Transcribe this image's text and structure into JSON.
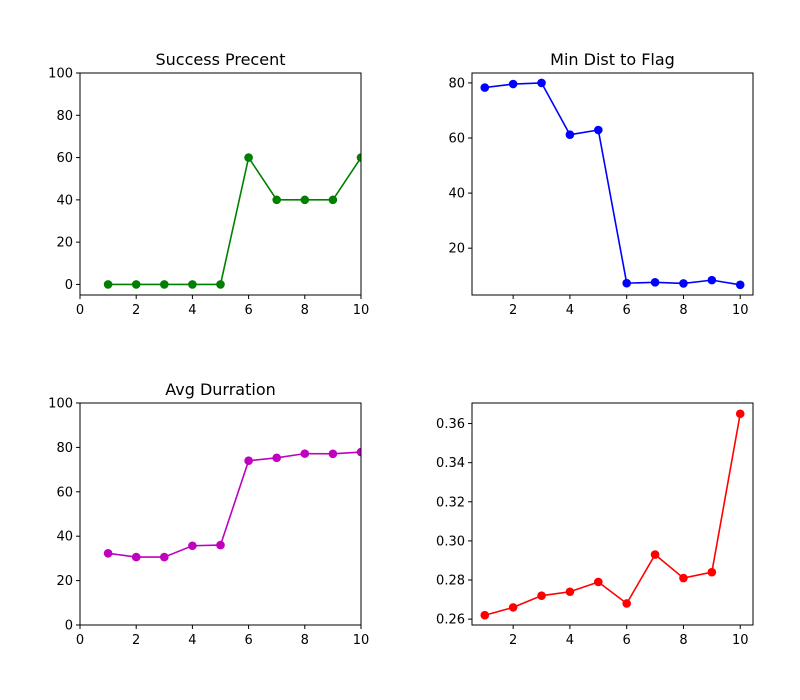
{
  "chart_data": [
    {
      "type": "line",
      "title": "Success Precent",
      "xlabel": "",
      "ylabel": "",
      "color": "#008000",
      "x": [
        1,
        2,
        3,
        4,
        5,
        6,
        7,
        8,
        9,
        10
      ],
      "values": [
        0,
        0,
        0,
        0,
        0,
        60,
        40,
        40,
        40,
        60
      ],
      "xlim": [
        0,
        10
      ],
      "ylim": [
        -5,
        100
      ],
      "xticks": [
        0,
        2,
        4,
        6,
        8,
        10
      ],
      "yticks": [
        0,
        20,
        40,
        60,
        80,
        100
      ],
      "xtick_labels": [
        "0",
        "2",
        "4",
        "6",
        "8",
        "10"
      ],
      "ytick_labels": [
        "0",
        "20",
        "40",
        "60",
        "80",
        "100"
      ],
      "grid": false,
      "legend": null
    },
    {
      "type": "line",
      "title": "Min Dist to Flag",
      "xlabel": "",
      "ylabel": "",
      "color": "#0000ff",
      "x": [
        1,
        2,
        3,
        4,
        5,
        6,
        7,
        8,
        9,
        10
      ],
      "values": [
        78.3,
        79.6,
        80.0,
        61.2,
        62.9,
        7.3,
        7.6,
        7.2,
        8.4,
        6.7
      ],
      "xlim": [
        0.55,
        10.45
      ],
      "ylim": [
        3.0,
        83.6
      ],
      "xticks": [
        2,
        4,
        6,
        8,
        10
      ],
      "yticks": [
        20,
        40,
        60,
        80
      ],
      "xtick_labels": [
        "2",
        "4",
        "6",
        "8",
        "10"
      ],
      "ytick_labels": [
        "20",
        "40",
        "60",
        "80"
      ],
      "grid": false,
      "legend": null
    },
    {
      "type": "line",
      "title": "Avg Durration",
      "xlabel": "",
      "ylabel": "",
      "color": "#bf00bf",
      "x": [
        1,
        2,
        3,
        4,
        5,
        6,
        7,
        8,
        9,
        10
      ],
      "values": [
        32.3,
        30.6,
        30.6,
        35.7,
        36.0,
        74.0,
        75.3,
        77.2,
        77.1,
        77.9
      ],
      "xlim": [
        0,
        10
      ],
      "ylim": [
        0,
        100
      ],
      "xticks": [
        0,
        2,
        4,
        6,
        8,
        10
      ],
      "yticks": [
        0,
        20,
        40,
        60,
        80,
        100
      ],
      "xtick_labels": [
        "0",
        "2",
        "4",
        "6",
        "8",
        "10"
      ],
      "ytick_labels": [
        "0",
        "20",
        "40",
        "60",
        "80",
        "100"
      ],
      "grid": false,
      "legend": null
    },
    {
      "type": "line",
      "title": "",
      "xlabel": "",
      "ylabel": "",
      "color": "#ff0000",
      "x": [
        1,
        2,
        3,
        4,
        5,
        6,
        7,
        8,
        9,
        10
      ],
      "values": [
        0.262,
        0.266,
        0.272,
        0.274,
        0.279,
        0.268,
        0.293,
        0.281,
        0.284,
        0.365
      ],
      "xlim": [
        0.55,
        10.45
      ],
      "ylim": [
        0.257,
        0.3705
      ],
      "xticks": [
        2,
        4,
        6,
        8,
        10
      ],
      "yticks": [
        0.26,
        0.28,
        0.3,
        0.32,
        0.34,
        0.36
      ],
      "xtick_labels": [
        "2",
        "4",
        "6",
        "8",
        "10"
      ],
      "ytick_labels": [
        "0.26",
        "0.28",
        "0.30",
        "0.32",
        "0.34",
        "0.36"
      ],
      "grid": false,
      "legend": null
    }
  ]
}
